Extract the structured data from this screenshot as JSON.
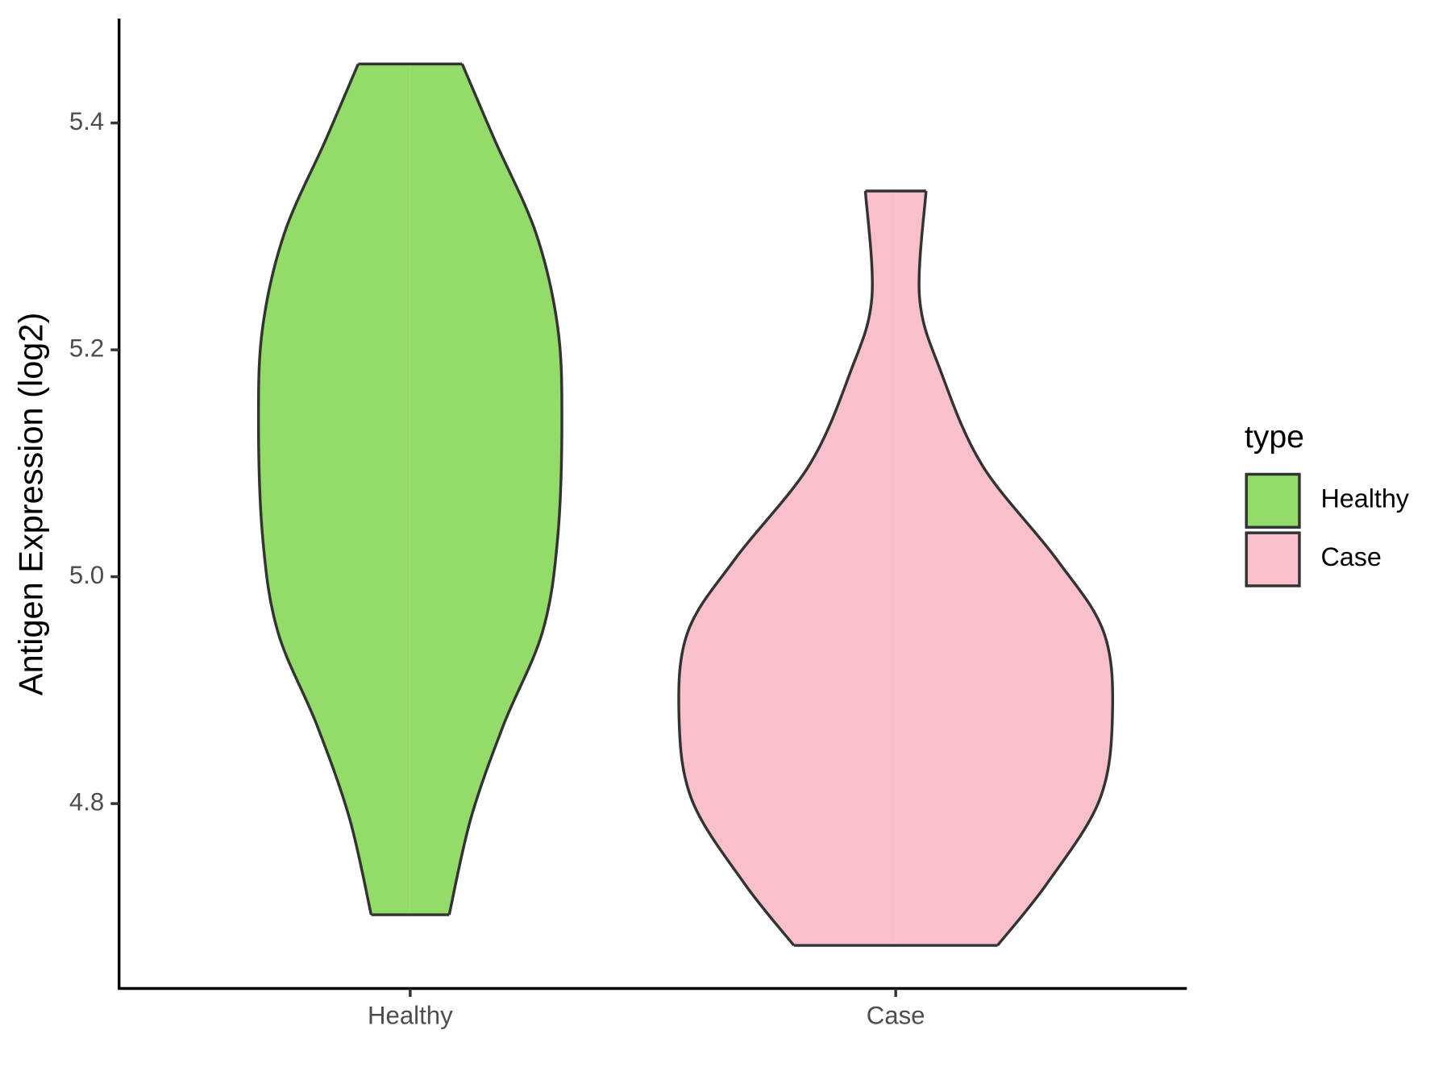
{
  "chart_data": {
    "type": "violin",
    "y_label": "Antigen Expression (log2)",
    "ylim": [
      4.637,
      5.492
    ],
    "yticks": [
      {
        "value": 4.8,
        "label": "4.8"
      },
      {
        "value": 5.0,
        "label": "5.0"
      },
      {
        "value": 5.2,
        "label": "5.2"
      },
      {
        "value": 5.4,
        "label": "5.4"
      }
    ],
    "categories": [
      "Healthy",
      "Case"
    ],
    "legend_title": "type",
    "legend_position": "right",
    "series": [
      {
        "name": "Healthy",
        "color": "#93dc6a",
        "y": [
          4.702,
          4.787,
          4.869,
          4.951,
          5.033,
          5.139,
          5.221,
          5.303,
          5.385,
          5.452
        ],
        "density": [
          0.18,
          0.28,
          0.43,
          0.61,
          0.68,
          0.7,
          0.68,
          0.58,
          0.39,
          0.24
        ]
      },
      {
        "name": "Case",
        "color": "#f7c0cb",
        "y": [
          4.675,
          4.73,
          4.803,
          4.877,
          4.951,
          5.016,
          5.098,
          5.18,
          5.246,
          5.34
        ],
        "density": [
          0.47,
          0.7,
          0.94,
          1.0,
          0.96,
          0.74,
          0.4,
          0.21,
          0.11,
          0.14
        ]
      }
    ]
  }
}
